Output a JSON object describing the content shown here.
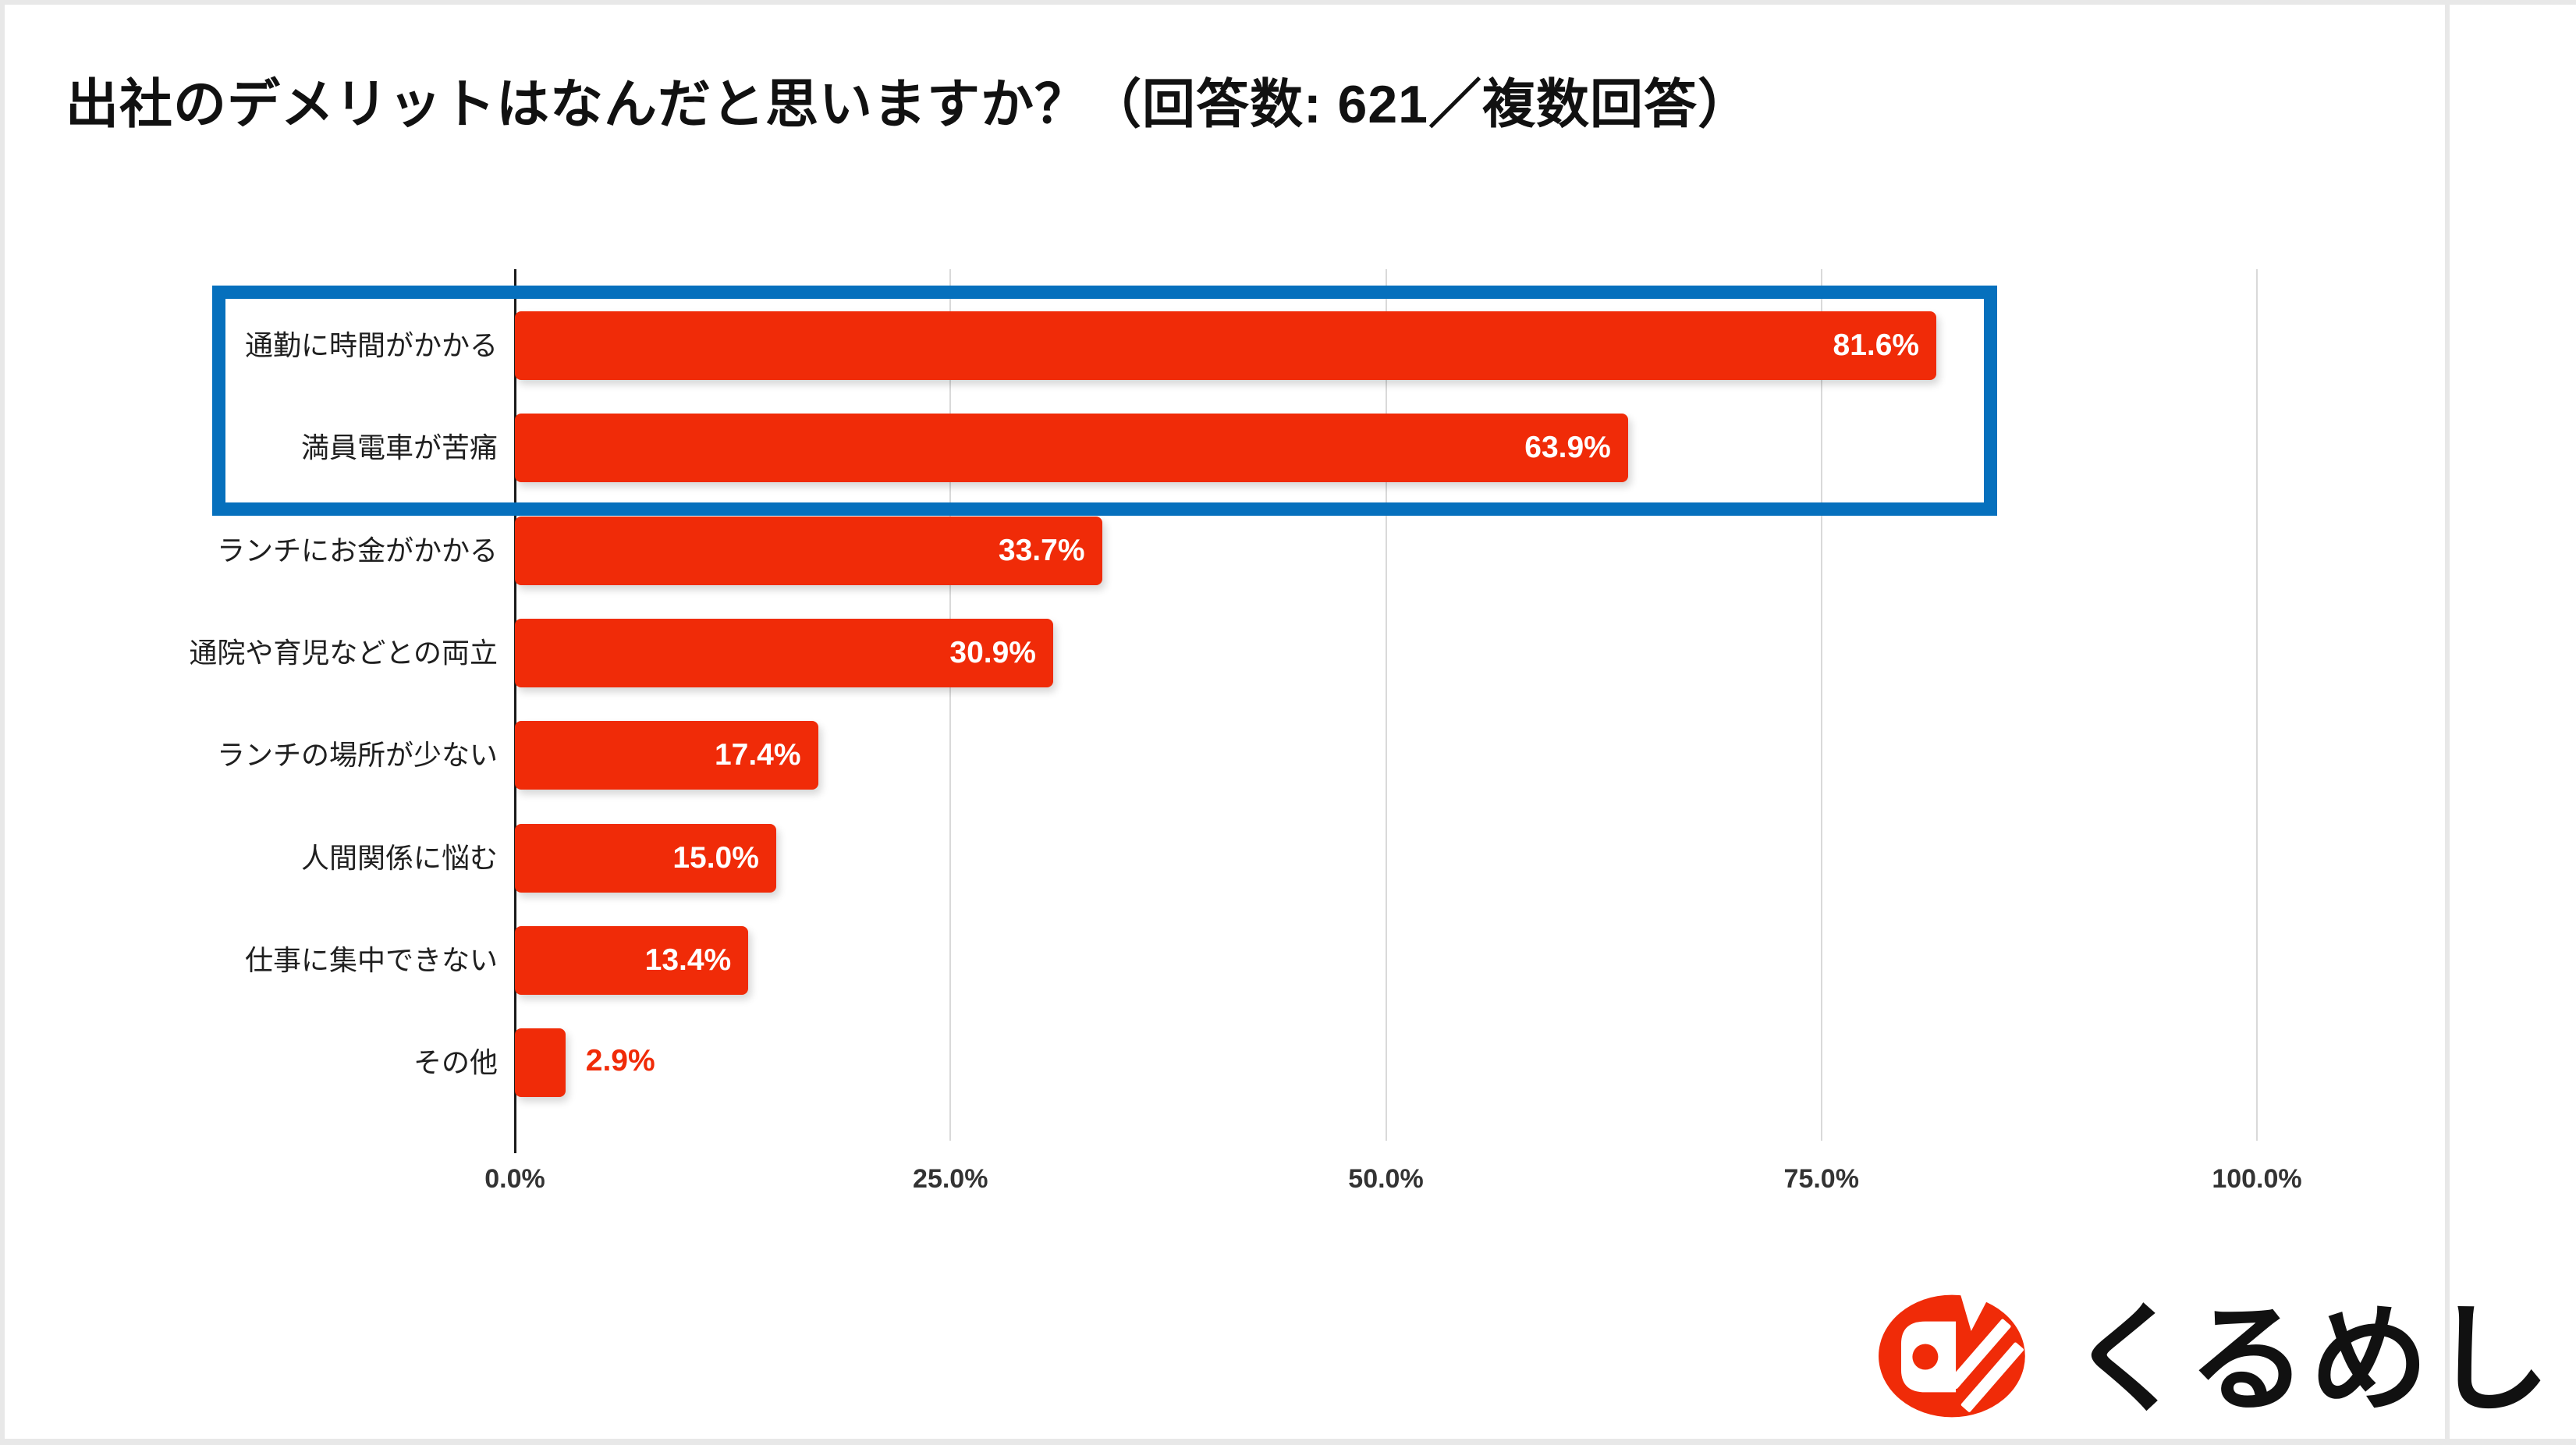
{
  "page": {
    "title": "出社のデメリットはなんだと思いますか？（回答数: 621／複数回答）"
  },
  "chart_data": {
    "type": "bar",
    "orientation": "horizontal",
    "title": "出社のデメリットはなんだと思いますか？（回答数: 621／複数回答）",
    "response_count": 621,
    "categories": [
      "通勤に時間がかかる",
      "満員電車が苦痛",
      "ランチにお金がかかる",
      "通院や育児などとの両立",
      "ランチの場所が少ない",
      "人間関係に悩む",
      "仕事に集中できない",
      "その他"
    ],
    "values": [
      81.6,
      63.9,
      33.7,
      30.9,
      17.4,
      15.0,
      13.4,
      2.9
    ],
    "value_labels": [
      "81.6%",
      "63.9%",
      "33.7%",
      "30.9%",
      "17.4%",
      "15.0%",
      "13.4%",
      "2.9%"
    ],
    "x_ticks": [
      "0.0%",
      "25.0%",
      "50.0%",
      "75.0%",
      "100.0%"
    ],
    "x_tick_values": [
      0,
      25,
      50,
      75,
      100
    ],
    "xlim": [
      0,
      100
    ],
    "grid": true,
    "bar_color": "#F02B08",
    "grid_color": "#d9d9d9",
    "axis_color": "#1a1a1a",
    "highlight": {
      "rows": [
        0,
        1
      ],
      "color": "#0670BD"
    }
  },
  "logo": {
    "text": "くるめし",
    "icon": "kurumeshi-mark",
    "icon_color": "#F02B08"
  }
}
